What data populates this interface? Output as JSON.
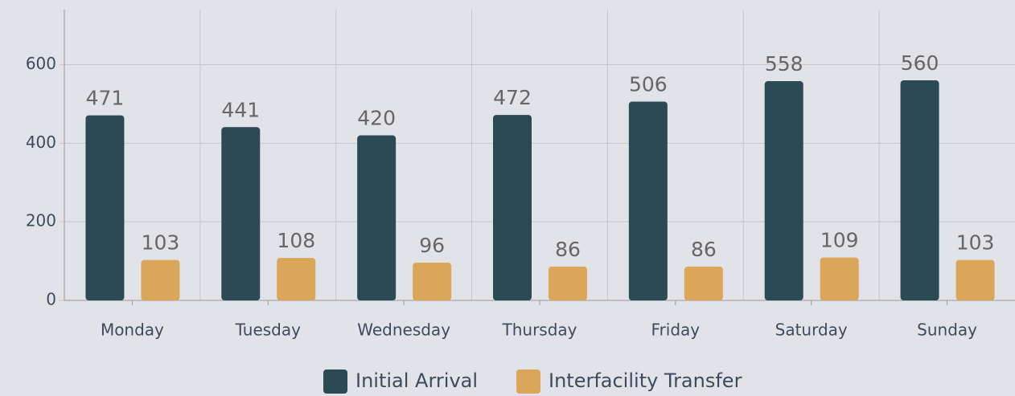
{
  "chart_data": {
    "type": "bar",
    "categories": [
      "Monday",
      "Tuesday",
      "Wednesday",
      "Thursday",
      "Friday",
      "Saturday",
      "Sunday"
    ],
    "series": [
      {
        "name": "Initial Arrival",
        "color": "#2b4a53",
        "values": [
          471,
          441,
          420,
          472,
          506,
          558,
          560
        ]
      },
      {
        "name": "Interfacility Transfer",
        "color": "#dba55a",
        "values": [
          103,
          108,
          96,
          86,
          86,
          109,
          103
        ]
      }
    ],
    "ylim": [
      0,
      740
    ],
    "yticks": [
      0,
      200,
      400,
      600
    ],
    "grid": true,
    "legend": "bottom"
  }
}
